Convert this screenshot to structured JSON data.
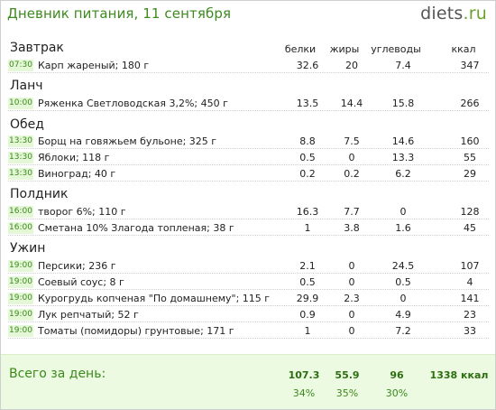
{
  "header": {
    "title": "Дневник питания, 11 сентября",
    "logo_main": "diets",
    "logo_tld": ".ru"
  },
  "columns": {
    "protein": "белки",
    "fat": "жиры",
    "carbs": "углеводы",
    "kcal": "ккал"
  },
  "meals": [
    {
      "name": "Завтрак",
      "items": [
        {
          "time": "07:30",
          "food": "Карп жареный; 180 г",
          "protein": "32.6",
          "fat": "20",
          "carbs": "7.4",
          "kcal": "347"
        }
      ]
    },
    {
      "name": "Ланч",
      "items": [
        {
          "time": "10:00",
          "food": "Ряженка Светловодская 3,2%; 450 г",
          "protein": "13.5",
          "fat": "14.4",
          "carbs": "15.8",
          "kcal": "266"
        }
      ]
    },
    {
      "name": "Обед",
      "items": [
        {
          "time": "13:30",
          "food": "Борщ на говяжьем бульоне; 325 г",
          "protein": "8.8",
          "fat": "7.5",
          "carbs": "14.6",
          "kcal": "160"
        },
        {
          "time": "13:30",
          "food": "Яблоки; 118 г",
          "protein": "0.5",
          "fat": "0",
          "carbs": "13.3",
          "kcal": "55"
        },
        {
          "time": "13:30",
          "food": "Виноград; 40 г",
          "protein": "0.2",
          "fat": "0.2",
          "carbs": "6.2",
          "kcal": "29"
        }
      ]
    },
    {
      "name": "Полдник",
      "items": [
        {
          "time": "16:00",
          "food": "творог 6%; 110 г",
          "protein": "16.3",
          "fat": "7.7",
          "carbs": "0",
          "kcal": "128"
        },
        {
          "time": "16:00",
          "food": "Сметана 10% Злагода топленая; 38 г",
          "protein": "1",
          "fat": "3.8",
          "carbs": "1.6",
          "kcal": "45"
        }
      ]
    },
    {
      "name": "Ужин",
      "items": [
        {
          "time": "19:00",
          "food": "Персики; 236 г",
          "protein": "2.1",
          "fat": "0",
          "carbs": "24.5",
          "kcal": "107"
        },
        {
          "time": "19:00",
          "food": "Соевый соус; 8 г",
          "protein": "0.5",
          "fat": "0",
          "carbs": "0.5",
          "kcal": "4"
        },
        {
          "time": "19:00",
          "food": "Курогрудь копченая \"По домашнему\"; 115 г",
          "protein": "29.9",
          "fat": "2.3",
          "carbs": "0",
          "kcal": "141"
        },
        {
          "time": "19:00",
          "food": "Лук репчатый; 52 г",
          "protein": "0.9",
          "fat": "0",
          "carbs": "4.9",
          "kcal": "23"
        },
        {
          "time": "19:00",
          "food": "Томаты (помидоры) грунтовые; 171 г",
          "protein": "1",
          "fat": "0",
          "carbs": "7.2",
          "kcal": "33"
        }
      ]
    }
  ],
  "totals": {
    "label": "Всего за день:",
    "protein": "107.3",
    "fat": "55.9",
    "carbs": "96",
    "kcal": "1338 ккал",
    "protein_pct": "34%",
    "fat_pct": "35%",
    "carbs_pct": "30%"
  }
}
